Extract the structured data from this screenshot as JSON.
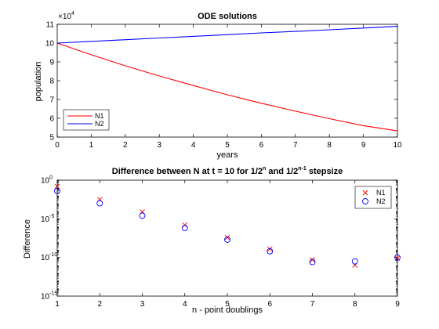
{
  "chart_data": [
    {
      "type": "line",
      "title": "ODE solutions",
      "xlabel": "years",
      "ylabel": "population",
      "axis_multiplier": "×10",
      "axis_multiplier_exp": "4",
      "xlim": [
        0,
        10
      ],
      "ylim": [
        5,
        11
      ],
      "xticks": [
        "0",
        "1",
        "2",
        "3",
        "4",
        "5",
        "6",
        "7",
        "8",
        "9",
        "10"
      ],
      "yticks": [
        "5",
        "6",
        "7",
        "8",
        "9",
        "10",
        "11"
      ],
      "grid": false,
      "legend_position": "bottom-left",
      "series": [
        {
          "name": "N1",
          "color": "#ff0000",
          "x": [
            0,
            1,
            2,
            3,
            4,
            5,
            6,
            7,
            8,
            9,
            10
          ],
          "y": [
            10.0,
            9.38,
            8.79,
            8.25,
            7.74,
            7.25,
            6.8,
            6.38,
            5.98,
            5.61,
            5.33
          ]
        },
        {
          "name": "N2",
          "color": "#0000ff",
          "x": [
            0,
            1,
            2,
            3,
            4,
            5,
            6,
            7,
            8,
            9,
            10
          ],
          "y": [
            10.0,
            10.09,
            10.18,
            10.27,
            10.36,
            10.45,
            10.54,
            10.62,
            10.71,
            10.8,
            10.89
          ]
        }
      ]
    },
    {
      "type": "scatter",
      "title": "Difference between N at t = 10 for 1/2",
      "title_sup1": "n",
      "title_mid": " and 1/2",
      "title_sup2": "n-1",
      "title_end": " stepsize",
      "xlabel": "n - point doublings",
      "ylabel": "Difference",
      "xlim": [
        1,
        9
      ],
      "ylim_log10": [
        -15,
        0
      ],
      "yscale": "log",
      "xticks": [
        "1",
        "2",
        "3",
        "4",
        "5",
        "6",
        "7",
        "8",
        "9"
      ],
      "yticks_base": "10",
      "yticks_exp": [
        "0",
        "-5",
        "-10",
        "-15"
      ],
      "grid": false,
      "legend_position": "top-right",
      "series": [
        {
          "name": "N1",
          "color": "#ff0000",
          "marker": "x",
          "x": [
            1,
            2,
            3,
            4,
            5,
            6,
            7,
            8,
            9
          ],
          "y_log10": [
            -0.8,
            -2.5,
            -4.1,
            -5.8,
            -7.4,
            -8.9,
            -10.3,
            -11.0,
            -10.1
          ]
        },
        {
          "name": "N2",
          "color": "#0000ff",
          "marker": "o",
          "x": [
            1,
            2,
            3,
            4,
            5,
            6,
            7,
            8,
            9
          ],
          "y_log10": [
            -1.4,
            -3.0,
            -4.6,
            -6.2,
            -7.7,
            -9.2,
            -10.6,
            -10.5,
            -10.0
          ]
        }
      ]
    }
  ]
}
